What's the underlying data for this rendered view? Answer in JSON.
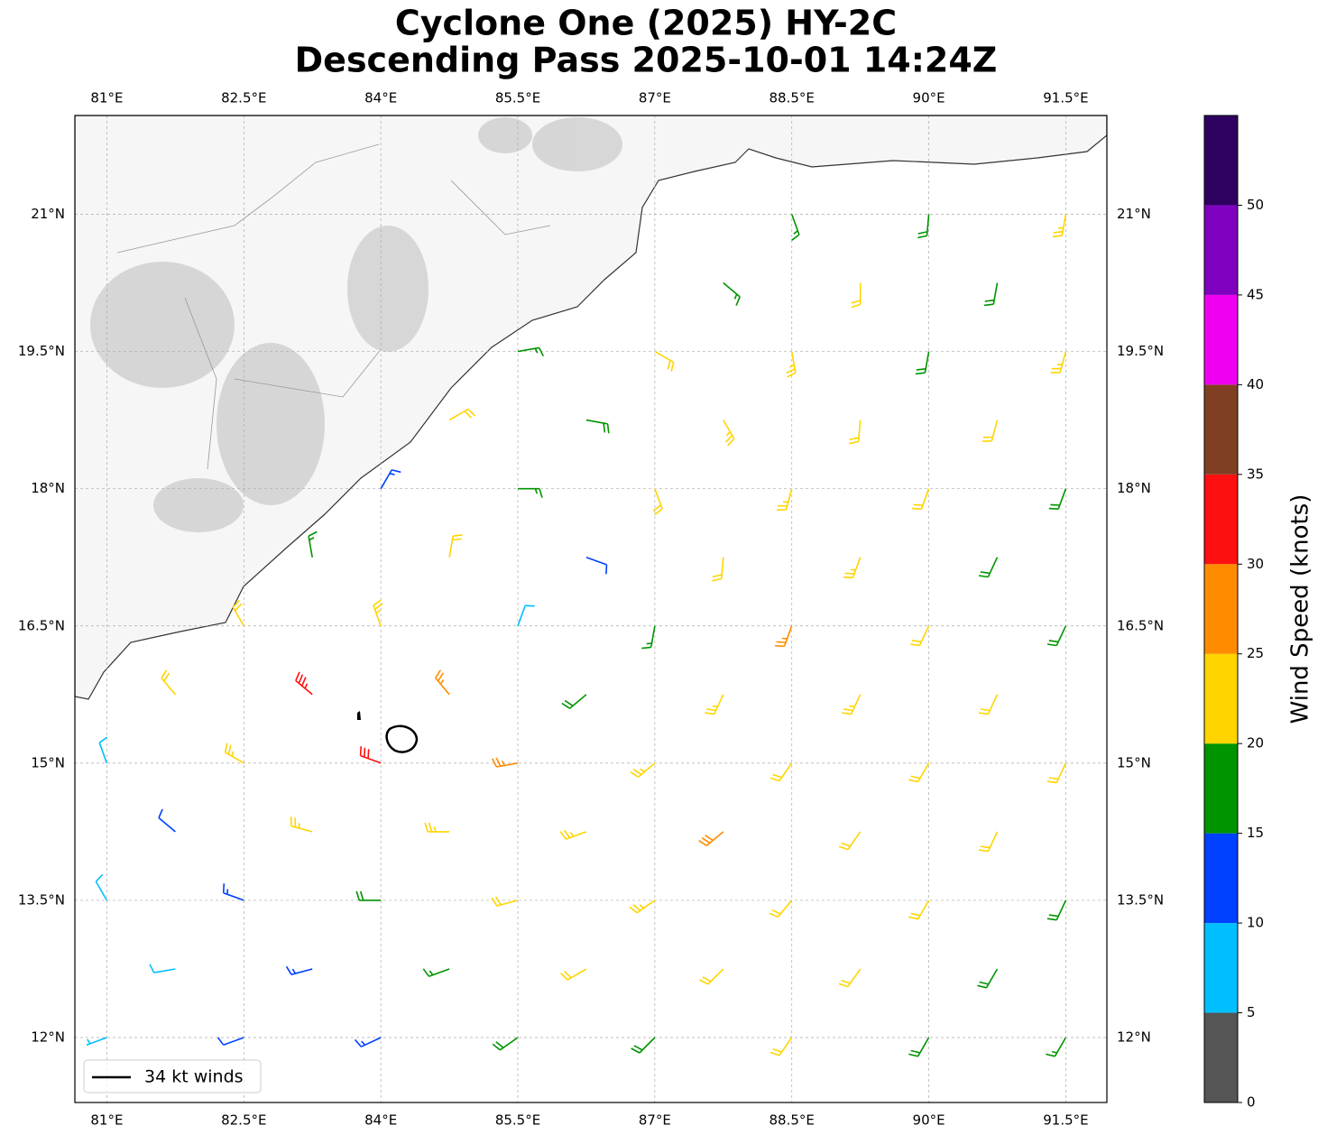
{
  "chart_data": {
    "type": "barb",
    "title": "Cyclone One (2025) HY-2C",
    "subtitle": "Descending Pass 2025-10-01 14:24Z",
    "xlim": [
      80.65,
      91.95
    ],
    "ylim": [
      11.29,
      22.08
    ],
    "grid": true,
    "xticks": [
      {
        "value": 81,
        "label": "81°E"
      },
      {
        "value": 82.5,
        "label": "82.5°E"
      },
      {
        "value": 84,
        "label": "84°E"
      },
      {
        "value": 85.5,
        "label": "85.5°E"
      },
      {
        "value": 87,
        "label": "87°E"
      },
      {
        "value": 88.5,
        "label": "88.5°E"
      },
      {
        "value": 90,
        "label": "90°E"
      },
      {
        "value": 91.5,
        "label": "91.5°E"
      }
    ],
    "yticks": [
      {
        "value": 12,
        "label": "12°N"
      },
      {
        "value": 13.5,
        "label": "13.5°N"
      },
      {
        "value": 15,
        "label": "15°N"
      },
      {
        "value": 16.5,
        "label": "16.5°N"
      },
      {
        "value": 18,
        "label": "18°N"
      },
      {
        "value": 19.5,
        "label": "19.5°N"
      },
      {
        "value": 21,
        "label": "21°N"
      }
    ],
    "legend": {
      "label": "34 kt winds",
      "corner": "lower left"
    },
    "colorbar": {
      "label": "Wind Speed (knots)",
      "lim": [
        0,
        55
      ],
      "bounds": [
        0,
        5,
        10,
        15,
        20,
        25,
        30,
        35,
        40,
        45,
        50,
        55
      ],
      "colors": [
        "#555555",
        "#00bfff",
        "#0040ff",
        "#009400",
        "#ffd500",
        "#ff8c00",
        "#ff1010",
        "#803f22",
        "#f000f0",
        "#8000c0",
        "#2e0060"
      ],
      "ticks": [
        0,
        5,
        10,
        15,
        20,
        25,
        30,
        35,
        40,
        45,
        50
      ]
    },
    "barbs": {
      "lon": [
        81,
        82.5,
        84,
        85.5,
        87,
        88.5,
        90,
        91.5,
        81,
        82.5,
        84,
        85.5,
        87,
        88.5,
        90,
        91.5,
        81,
        82.5,
        84,
        85.5,
        87,
        88.5,
        90,
        91.5,
        82.5,
        84,
        85.5,
        87,
        88.5,
        90,
        91.5,
        84,
        85.5,
        87,
        88.5,
        90,
        91.5,
        85.5,
        87,
        88.5,
        90,
        91.5,
        88.5,
        90,
        91.5,
        81.75,
        83.25,
        84.75,
        86.25,
        87.75,
        89.25,
        90.75,
        81.75,
        83.25,
        84.75,
        86.25,
        87.75,
        89.25,
        90.75,
        81.75,
        83.25,
        84.75,
        86.25,
        87.75,
        89.25,
        90.75,
        83.25,
        84.75,
        86.25,
        87.75,
        89.25,
        90.75,
        84.75,
        86.25,
        87.75,
        89.25,
        90.75,
        87.75,
        89.25,
        90.75
      ],
      "lat": [
        12,
        12,
        12,
        12,
        12,
        12,
        12,
        12,
        13.5,
        13.5,
        13.5,
        13.5,
        13.5,
        13.5,
        13.5,
        13.5,
        15,
        15,
        15,
        15,
        15,
        15,
        15,
        15,
        16.5,
        16.5,
        16.5,
        16.5,
        16.5,
        16.5,
        16.5,
        18,
        18,
        18,
        18,
        18,
        18,
        19.5,
        19.5,
        19.5,
        19.5,
        19.5,
        21,
        21,
        21,
        12.75,
        12.75,
        12.75,
        12.75,
        12.75,
        12.75,
        12.75,
        14.25,
        14.25,
        14.25,
        14.25,
        14.25,
        14.25,
        14.25,
        15.75,
        15.75,
        15.75,
        15.75,
        15.75,
        15.75,
        15.75,
        17.25,
        17.25,
        17.25,
        17.25,
        17.25,
        17.25,
        18.75,
        18.75,
        18.75,
        18.75,
        18.75,
        20.25,
        20.25,
        20.25
      ],
      "speed": [
        7,
        12,
        14,
        18,
        19,
        21,
        18,
        17,
        8,
        13,
        18,
        22,
        23,
        22,
        21,
        18,
        9,
        23,
        31,
        27,
        23,
        22,
        22,
        22,
        21,
        24,
        8,
        17,
        27,
        22,
        18,
        13,
        17,
        21,
        23,
        22,
        18,
        16,
        22,
        23,
        18,
        23,
        16,
        18,
        23,
        9,
        13,
        17,
        21,
        22,
        21,
        18,
        12,
        24,
        24,
        23,
        28,
        22,
        22,
        22,
        33,
        27,
        18,
        23,
        23,
        21,
        17,
        22,
        12,
        22,
        23,
        19,
        21,
        18,
        23,
        22,
        22,
        17,
        22,
        18
      ],
      "direction": [
        250,
        250,
        245,
        235,
        225,
        215,
        210,
        210,
        330,
        290,
        270,
        255,
        235,
        220,
        210,
        205,
        340,
        300,
        290,
        260,
        230,
        215,
        210,
        205,
        330,
        340,
        20,
        190,
        200,
        205,
        205,
        30,
        90,
        160,
        195,
        200,
        200,
        80,
        120,
        170,
        190,
        195,
        160,
        185,
        190,
        260,
        255,
        250,
        240,
        225,
        215,
        210,
        310,
        285,
        270,
        250,
        230,
        215,
        205,
        320,
        310,
        320,
        230,
        205,
        205,
        205,
        350,
        10,
        110,
        185,
        200,
        205,
        60,
        100,
        150,
        185,
        195,
        130,
        180,
        190
      ]
    }
  }
}
